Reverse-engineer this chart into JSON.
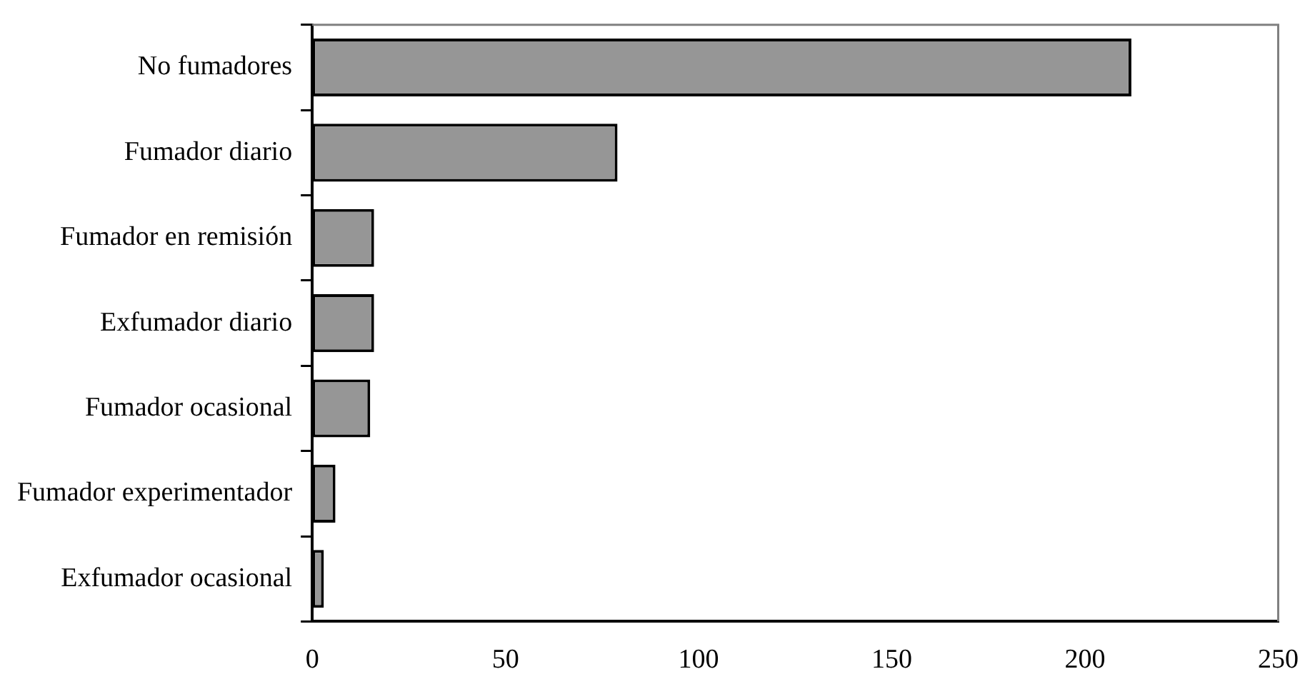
{
  "chart_data": {
    "type": "bar",
    "orientation": "horizontal",
    "categories": [
      "No fumadores",
      "Fumador diario",
      "Fumador en remisión",
      "Exfumador diario",
      "Fumador ocasional",
      "Fumador experimentador",
      "Exfumador ocasional"
    ],
    "values": [
      212,
      79,
      16,
      16,
      15,
      6,
      3
    ],
    "color": "#969696",
    "xlim": [
      0,
      250
    ],
    "xticks": [
      0,
      50,
      100,
      150,
      200,
      250
    ],
    "grid": false,
    "legend": false
  }
}
